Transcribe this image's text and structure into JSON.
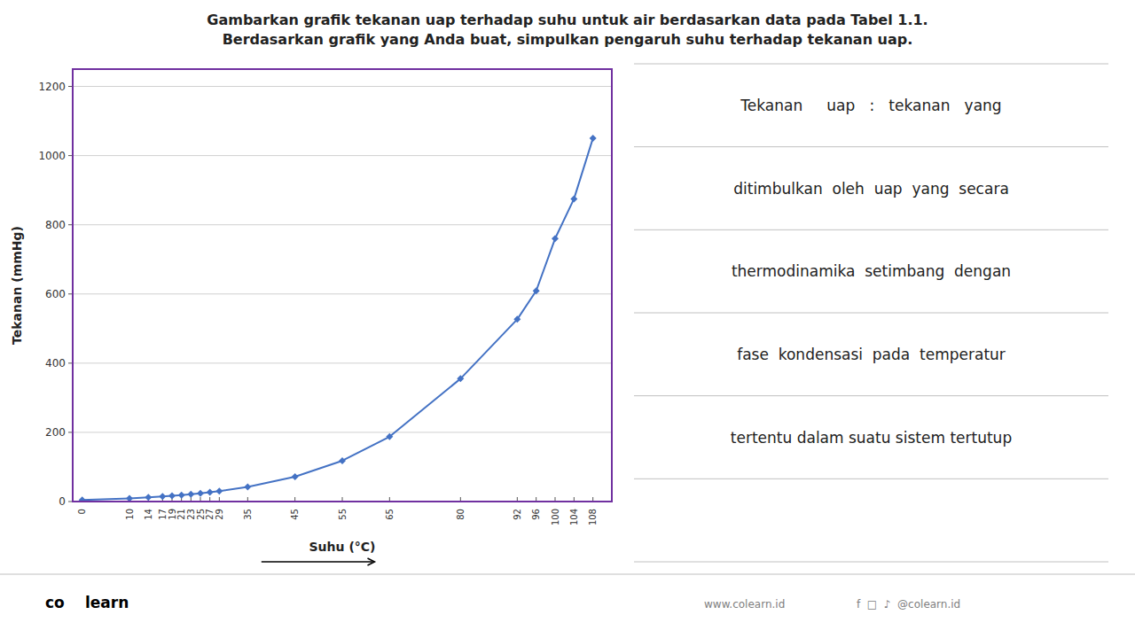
{
  "chart_data": {
    "type": "line",
    "title": "Gambarkan grafik tekanan uap terhadap suhu untuk air berdasarkan data pada Tabel 1.1.",
    "subtitle": "Berdasarkan grafik yang Anda buat, simpulkan pengaruh suhu terhadap tekanan uap.",
    "x_label": "Suhu (°C)",
    "y_label": "Tekanan (mmHg)",
    "x": [
      0,
      10,
      14,
      17,
      19,
      21,
      23,
      25,
      27,
      29,
      35,
      45,
      55,
      65,
      80,
      92,
      96,
      100,
      104,
      108
    ],
    "values": [
      4.6,
      9.2,
      12.0,
      14.5,
      16.5,
      18.7,
      21.1,
      23.8,
      26.7,
      30.0,
      42.2,
      71.9,
      118.0,
      187.5,
      355.1,
      526.8,
      609.0,
      760.0,
      875.0,
      1050.0
    ],
    "color": "#4472C4",
    "marker": "diamond",
    "xlim": [
      -2,
      112
    ],
    "xticks": [
      0,
      10,
      14,
      17,
      19,
      21,
      23,
      25,
      27,
      29,
      35,
      45,
      55,
      65,
      80,
      92,
      96,
      100,
      104,
      108
    ],
    "ylim": [
      0,
      1250
    ],
    "yticks": [
      0,
      200,
      400,
      600,
      800,
      1000,
      1200
    ],
    "grid": true,
    "annotations": [
      "Tekanan     uap   :   tekanan   yang",
      "ditimbulkan  oleh  uap  yang  secara",
      "thermodinamika  setimbang  dengan",
      "fase  kondensasi  pada  temperatur",
      "tertentu dalam suatu sistem tertutup",
      "co",
      "learn",
      "www.colearn.id",
      "f  □  ♪  @colearn.id"
    ]
  }
}
